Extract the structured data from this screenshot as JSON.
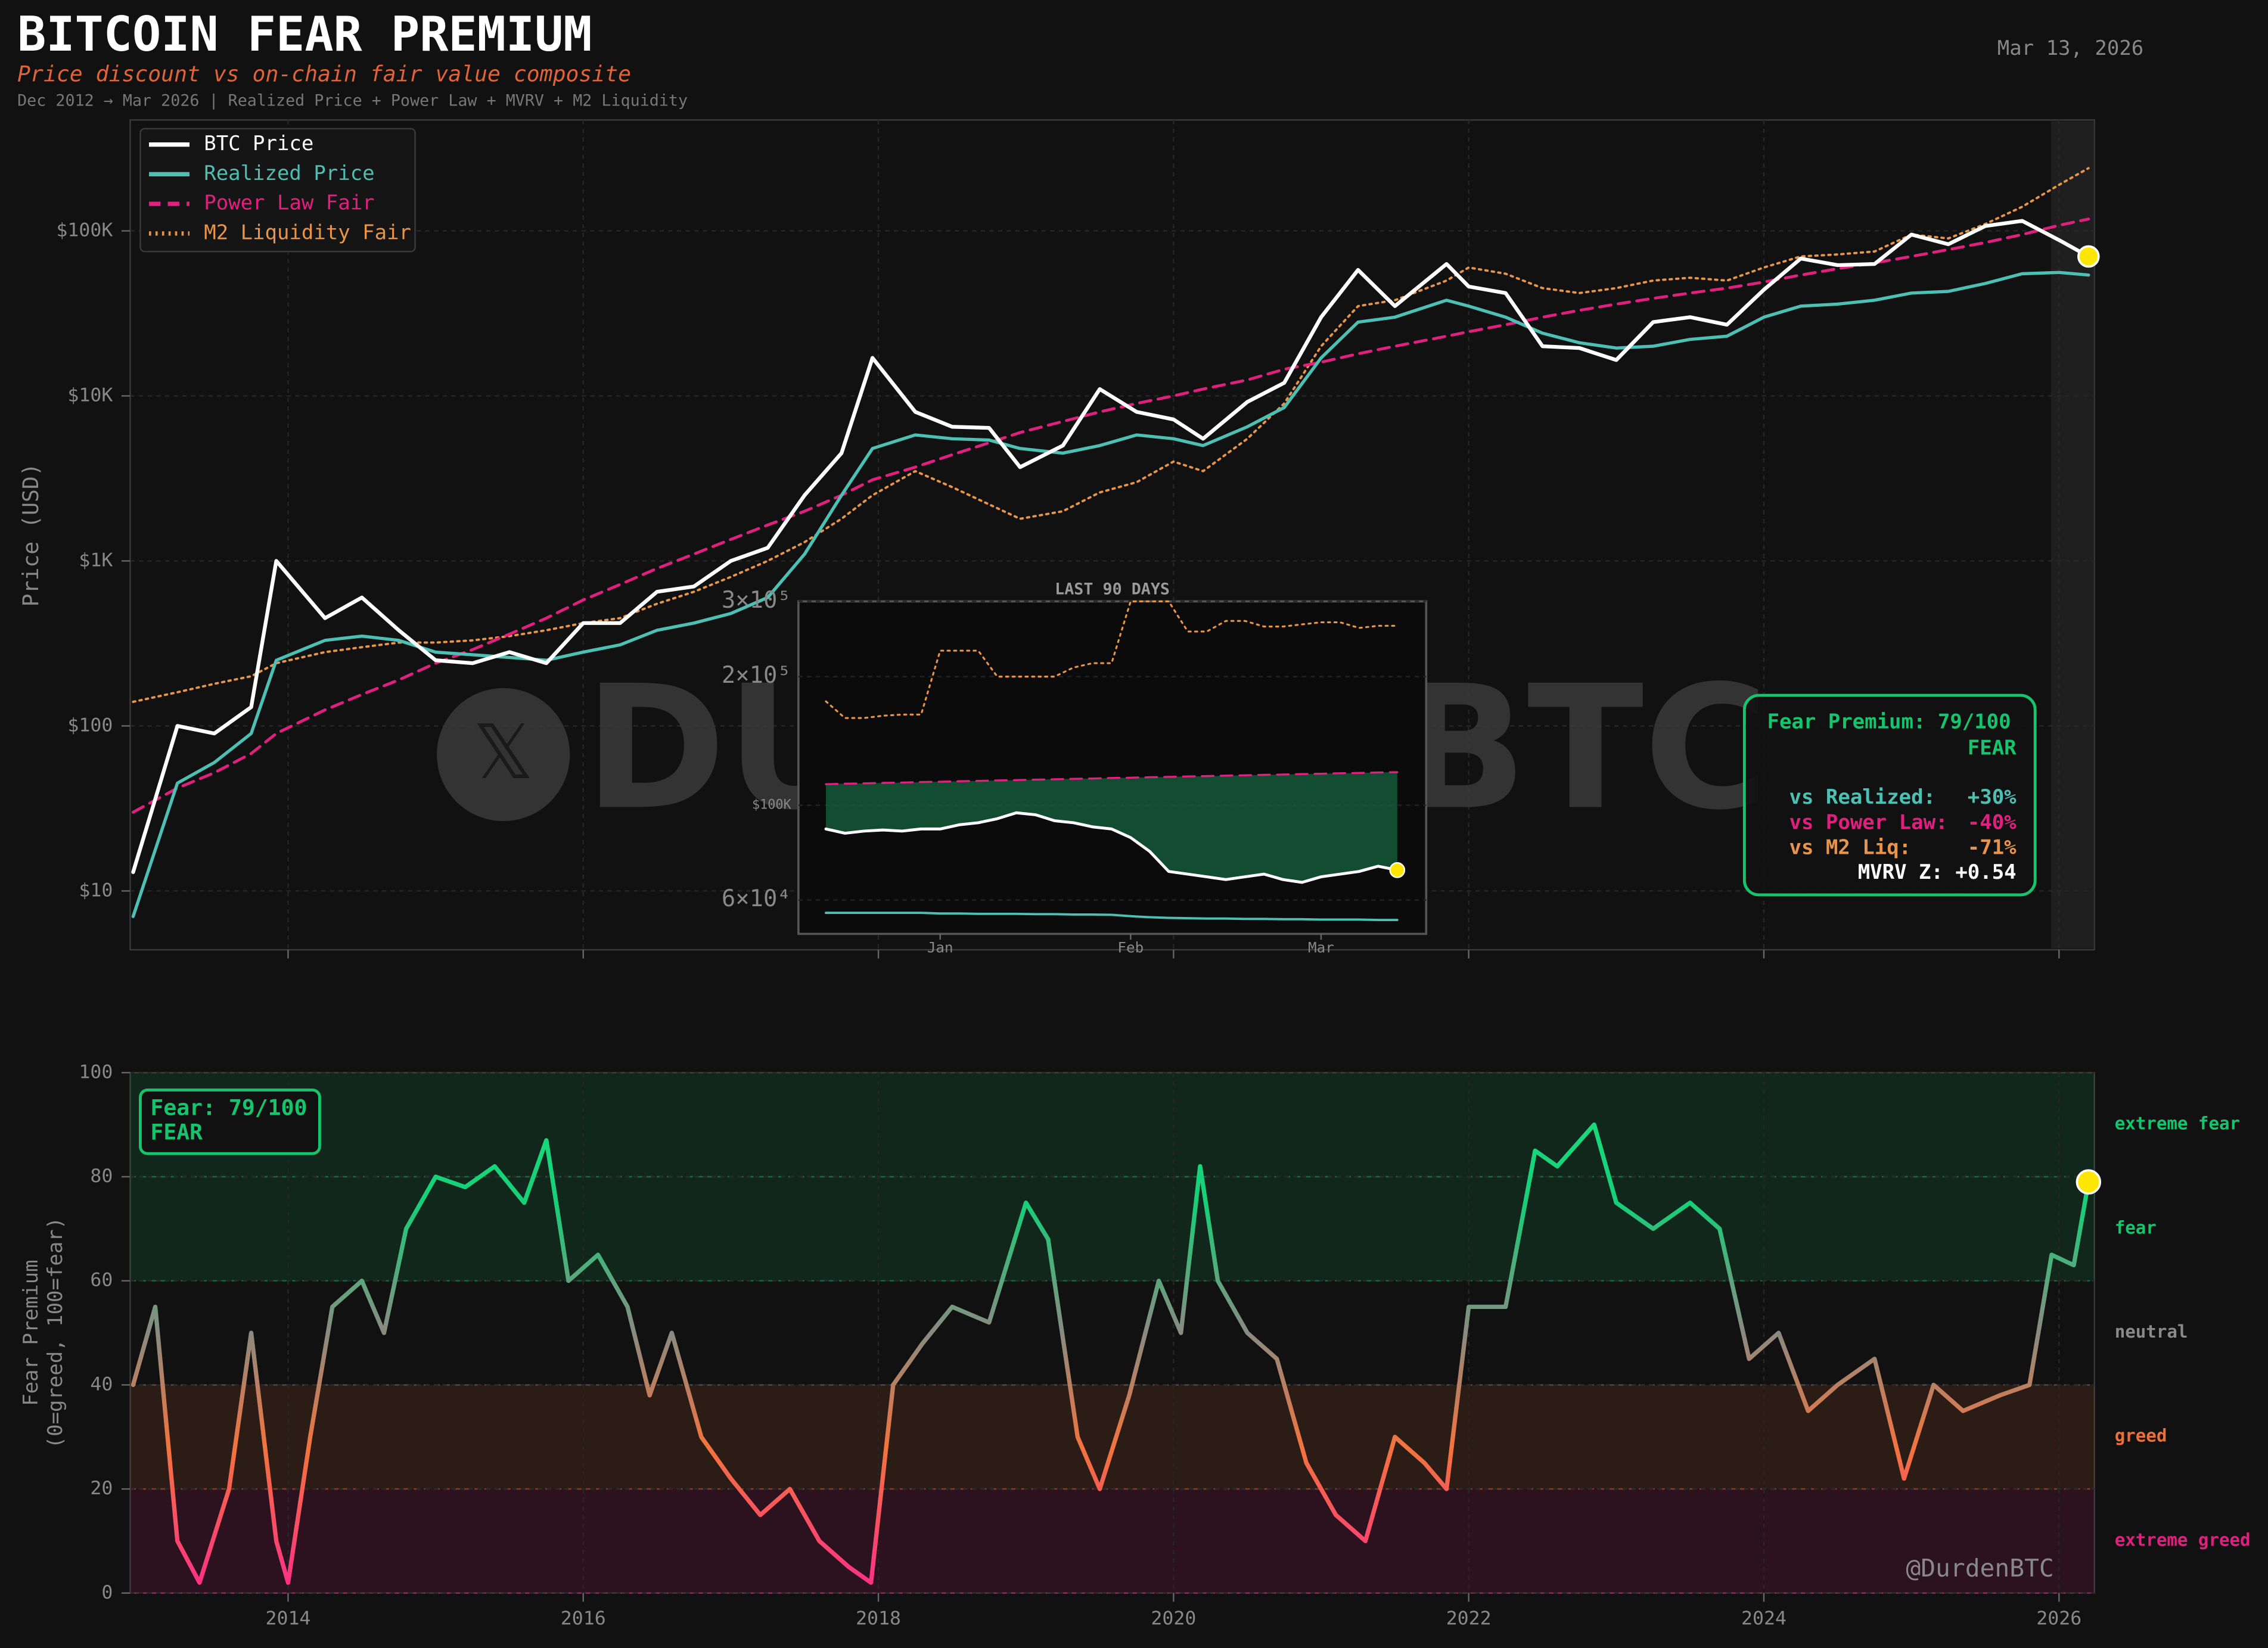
{
  "chart_data": [
    {
      "type": "line",
      "title": "BITCOIN FEAR PREMIUM",
      "subtitle": "Price discount vs on-chain fair value composite",
      "note": "Dec 2012 → Mar 2026  |  Realized Price + Power Law + MVRV + M2 Liquidity",
      "date": "Mar 13, 2026",
      "ylabel": "Price (USD)",
      "log_y": true,
      "grid": true,
      "legend": "upper left",
      "watermark": "DURDENBTC",
      "x": [
        2012.95,
        2013.25,
        2013.5,
        2013.75,
        2013.92,
        2014.25,
        2014.5,
        2014.75,
        2015.0,
        2015.25,
        2015.5,
        2015.75,
        2016.0,
        2016.25,
        2016.5,
        2016.75,
        2017.0,
        2017.25,
        2017.5,
        2017.75,
        2017.96,
        2018.25,
        2018.5,
        2018.75,
        2018.96,
        2019.25,
        2019.5,
        2019.75,
        2020.0,
        2020.2,
        2020.5,
        2020.75,
        2021.0,
        2021.25,
        2021.5,
        2021.85,
        2022.0,
        2022.25,
        2022.5,
        2022.75,
        2023.0,
        2023.25,
        2023.5,
        2023.75,
        2024.0,
        2024.25,
        2024.5,
        2024.75,
        2025.0,
        2025.25,
        2025.5,
        2025.75,
        2026.0,
        2026.2
      ],
      "series": [
        {
          "name": "BTC Price",
          "color": "#ffffff",
          "style": "solid",
          "width": 2.6,
          "values": [
            13,
            100,
            90,
            130,
            1000,
            450,
            600,
            380,
            250,
            240,
            280,
            240,
            420,
            420,
            650,
            700,
            1000,
            1200,
            2500,
            4500,
            17000,
            8000,
            6500,
            6400,
            3700,
            5000,
            11000,
            8000,
            7200,
            5500,
            9200,
            12000,
            30000,
            58000,
            35000,
            63000,
            46000,
            42000,
            20000,
            19500,
            16500,
            28000,
            30000,
            27000,
            44000,
            68000,
            62000,
            63000,
            95000,
            83000,
            107000,
            115000,
            88000,
            70000
          ]
        },
        {
          "name": "Realized Price",
          "color": "#4dbfb3",
          "style": "solid",
          "width": 2.2,
          "values": [
            7,
            45,
            60,
            90,
            250,
            330,
            350,
            330,
            280,
            270,
            260,
            250,
            280,
            310,
            380,
            420,
            480,
            600,
            1100,
            2500,
            4800,
            5800,
            5500,
            5400,
            4800,
            4500,
            5000,
            5800,
            5500,
            5000,
            6500,
            8500,
            17000,
            28000,
            30000,
            38000,
            35000,
            30000,
            24000,
            21000,
            19500,
            20000,
            22000,
            23000,
            30000,
            35000,
            36000,
            38000,
            42000,
            43000,
            48000,
            55000,
            56000,
            54000
          ]
        },
        {
          "name": "Power Law Fair",
          "color": "#e0207f",
          "style": "dashed",
          "width": 2,
          "values": [
            30,
            42,
            52,
            68,
            90,
            125,
            155,
            190,
            240,
            290,
            360,
            450,
            580,
            720,
            900,
            1100,
            1350,
            1650,
            2000,
            2500,
            3100,
            3700,
            4400,
            5200,
            6000,
            7000,
            8000,
            9000,
            10000,
            11000,
            12500,
            14500,
            16000,
            18000,
            20000,
            23000,
            24500,
            27000,
            30000,
            33000,
            36000,
            39000,
            42000,
            45000,
            49000,
            54000,
            59000,
            64000,
            70000,
            77000,
            85000,
            95000,
            108000,
            118000
          ]
        },
        {
          "name": "M2 Liquidity Fair",
          "color": "#e8954a",
          "style": "dotted",
          "width": 1.6,
          "values": [
            140,
            160,
            180,
            200,
            240,
            280,
            300,
            320,
            320,
            330,
            350,
            380,
            420,
            450,
            550,
            650,
            800,
            1000,
            1300,
            1800,
            2500,
            3500,
            2800,
            2200,
            1800,
            2000,
            2600,
            3000,
            4000,
            3500,
            5500,
            9000,
            20000,
            35000,
            38000,
            50000,
            60000,
            55000,
            45000,
            42000,
            45000,
            50000,
            52000,
            50000,
            60000,
            70000,
            72000,
            75000,
            95000,
            90000,
            110000,
            140000,
            190000,
            240000
          ]
        }
      ],
      "xlim": [
        2012.93,
        2026.24
      ],
      "xticks": [
        2014,
        2016,
        2018,
        2020,
        2022,
        2024,
        2026
      ],
      "ylim": [
        4.4,
        470000
      ],
      "yticks": [
        {
          "value": 10,
          "label": "$10"
        },
        {
          "value": 100,
          "label": "$100"
        },
        {
          "value": 1000,
          "label": "$1K"
        },
        {
          "value": 10000,
          "label": "$10K"
        },
        {
          "value": 100000,
          "label": "$100K"
        }
      ],
      "info_box": {
        "header": "Fear Premium: 79/100",
        "state": "FEAR",
        "rows": [
          {
            "label": "vs Realized:",
            "value": "+30%"
          },
          {
            "label": "vs Power Law:",
            "value": "-40%"
          },
          {
            "label": "vs M2 Liq:",
            "value": "-71%"
          }
        ],
        "mvrv": "MVRV Z: +0.54"
      }
    },
    {
      "type": "line",
      "title": "LAST 90 DAYS",
      "log_y": true,
      "categories": [
        null,
        null,
        null,
        null,
        null,
        null,
        "Jan",
        null,
        null,
        null,
        null,
        null,
        null,
        null,
        null,
        null,
        "Feb",
        null,
        null,
        null,
        null,
        null,
        null,
        null,
        null,
        null,
        "Mar",
        null,
        null,
        null,
        null
      ],
      "series": [
        {
          "color": "#ffffff",
          "style": "solid",
          "width": 2,
          "values": [
            88000,
            86000,
            87000,
            87500,
            87000,
            88000,
            88000,
            90000,
            91000,
            93000,
            96000,
            95000,
            92000,
            91000,
            89000,
            88000,
            84000,
            78000,
            70000,
            69000,
            68000,
            67000,
            68000,
            69000,
            67000,
            66000,
            68000,
            69000,
            70000,
            72000,
            70500
          ]
        },
        {
          "color": "#4dbfb3",
          "style": "solid",
          "width": 1.6,
          "values": [
            56000,
            56000,
            56000,
            56000,
            56000,
            56000,
            55800,
            55800,
            55700,
            55700,
            55700,
            55600,
            55600,
            55500,
            55500,
            55400,
            55000,
            54700,
            54500,
            54400,
            54300,
            54300,
            54200,
            54200,
            54100,
            54100,
            54000,
            54000,
            54000,
            53900,
            53900
          ]
        },
        {
          "color": "#e0207f",
          "style": "dashed",
          "width": 1.4,
          "values": [
            112000,
            112300,
            112500,
            112800,
            113000,
            113300,
            113500,
            113800,
            114000,
            114300,
            114500,
            114800,
            115000,
            115300,
            115500,
            115800,
            116000,
            116300,
            116500,
            116800,
            117000,
            117300,
            117500,
            117800,
            118000,
            118300,
            118500,
            118800,
            119000,
            119300,
            119500
          ]
        },
        {
          "color": "#e8954a",
          "style": "dotted",
          "width": 1.3,
          "values": [
            175000,
            160000,
            160000,
            162000,
            163000,
            163000,
            230000,
            230000,
            230000,
            200000,
            200000,
            200000,
            200000,
            210000,
            215000,
            215000,
            300000,
            300000,
            300000,
            255000,
            255000,
            270000,
            270000,
            262000,
            262000,
            265000,
            268000,
            268000,
            260000,
            263000,
            263000
          ]
        }
      ],
      "fill_color": "#15633f",
      "ylim": [
        50000,
        300000
      ],
      "yticks": [
        {
          "value": 60000,
          "label": "6×10⁴"
        },
        {
          "value": 100000,
          "label": "$100K"
        },
        {
          "value": 200000,
          "label": "2×10⁵"
        },
        {
          "value": 300000,
          "label": "3×10⁵"
        }
      ]
    },
    {
      "type": "line",
      "ylabel": [
        "Fear Premium",
        "(0=greed, 100=fear)"
      ],
      "grid": true,
      "badge": [
        "Fear: 79/100",
        "FEAR"
      ],
      "credit": "@DurdenBTC",
      "x": [
        2012.95,
        2013.1,
        2013.25,
        2013.4,
        2013.6,
        2013.75,
        2013.92,
        2014.0,
        2014.15,
        2014.3,
        2014.5,
        2014.65,
        2014.8,
        2015.0,
        2015.2,
        2015.4,
        2015.6,
        2015.75,
        2015.9,
        2016.1,
        2016.3,
        2016.45,
        2016.6,
        2016.8,
        2017.0,
        2017.2,
        2017.4,
        2017.6,
        2017.8,
        2017.95,
        2018.1,
        2018.3,
        2018.5,
        2018.75,
        2019.0,
        2019.15,
        2019.35,
        2019.5,
        2019.7,
        2019.9,
        2020.05,
        2020.18,
        2020.3,
        2020.5,
        2020.7,
        2020.9,
        2021.1,
        2021.3,
        2021.5,
        2021.7,
        2021.85,
        2022.0,
        2022.25,
        2022.45,
        2022.6,
        2022.85,
        2023.0,
        2023.25,
        2023.5,
        2023.7,
        2023.9,
        2024.1,
        2024.3,
        2024.5,
        2024.75,
        2024.95,
        2025.15,
        2025.35,
        2025.6,
        2025.8,
        2025.95,
        2026.1,
        2026.2
      ],
      "series": [
        {
          "values": [
            40,
            55,
            10,
            2,
            20,
            50,
            10,
            2,
            30,
            55,
            60,
            50,
            70,
            80,
            78,
            82,
            75,
            87,
            60,
            65,
            55,
            38,
            50,
            30,
            22,
            15,
            20,
            10,
            5,
            2,
            40,
            48,
            55,
            52,
            75,
            68,
            30,
            20,
            38,
            60,
            50,
            82,
            60,
            50,
            45,
            25,
            15,
            10,
            30,
            25,
            20,
            55,
            55,
            85,
            82,
            90,
            75,
            70,
            75,
            70,
            45,
            50,
            35,
            40,
            45,
            22,
            40,
            35,
            38,
            40,
            65,
            63,
            79
          ]
        }
      ],
      "zones": [
        {
          "from": 80,
          "to": 100,
          "label": "extreme fear",
          "color": "#16c46e"
        },
        {
          "from": 60,
          "to": 80,
          "label": "fear",
          "color": "#16c46e"
        },
        {
          "from": 40,
          "to": 60,
          "label": "neutral",
          "color": "#8a8a8a"
        },
        {
          "from": 20,
          "to": 40,
          "label": "greed",
          "color": "#e8703a"
        },
        {
          "from": 0,
          "to": 20,
          "label": "extreme greed",
          "color": "#e0207f"
        }
      ],
      "xlim": [
        2012.93,
        2026.24
      ],
      "xticks": [
        2014,
        2016,
        2018,
        2020,
        2022,
        2024,
        2026
      ],
      "ylim": [
        0,
        100
      ],
      "yticks": [
        0,
        20,
        40,
        60,
        80,
        100
      ]
    }
  ]
}
